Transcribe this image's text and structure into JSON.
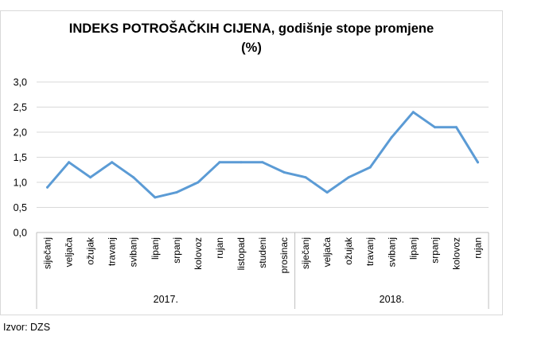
{
  "chart_data": {
    "type": "line",
    "title": "INDEKS POTROŠAČKIH CIJENA, godišnje stope promjene",
    "subtitle": "(%)",
    "categories": [
      "siječanj",
      "veljača",
      "ožujak",
      "travanj",
      "svibanj",
      "lipanj",
      "srpanj",
      "kolovoz",
      "rujan",
      "listopad",
      "studeni",
      "prosinac",
      "siječanj",
      "veljača",
      "ožujak",
      "travanj",
      "svibanj",
      "lipanj",
      "srpanj",
      "kolovoz",
      "rujan"
    ],
    "year_groups": [
      {
        "label": "2017.",
        "count": 12
      },
      {
        "label": "2018.",
        "count": 9
      }
    ],
    "values": [
      0.9,
      1.4,
      1.1,
      1.4,
      1.1,
      0.7,
      0.8,
      1.0,
      1.4,
      1.4,
      1.4,
      1.2,
      1.1,
      0.8,
      1.1,
      1.3,
      1.9,
      2.4,
      2.1,
      2.1,
      1.4
    ],
    "ylim": [
      0,
      3
    ],
    "yticks": [
      "0,0",
      "0,5",
      "1,0",
      "1,5",
      "2,0",
      "2,5",
      "3,0"
    ],
    "grid": true,
    "line_color": "#5b9bd5",
    "xlabel": "",
    "ylabel": ""
  },
  "source": "Izvor: DZS"
}
